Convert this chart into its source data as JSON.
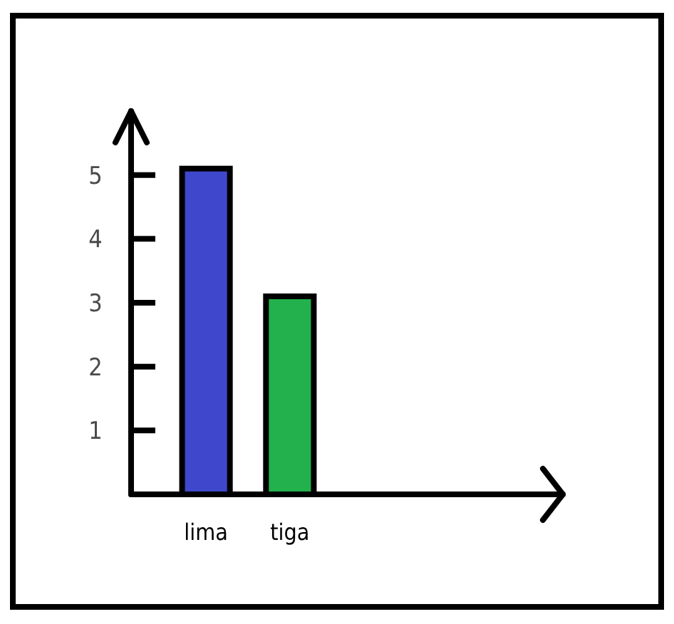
{
  "chart_data": {
    "type": "bar",
    "categories": [
      "lima",
      "tiga"
    ],
    "values": [
      5.1,
      3.1
    ],
    "colors": [
      "#3f48cc",
      "#22b14c"
    ],
    "ylim": [
      0,
      6
    ],
    "yticks": [
      1,
      2,
      3,
      4,
      5
    ],
    "grid": false
  }
}
